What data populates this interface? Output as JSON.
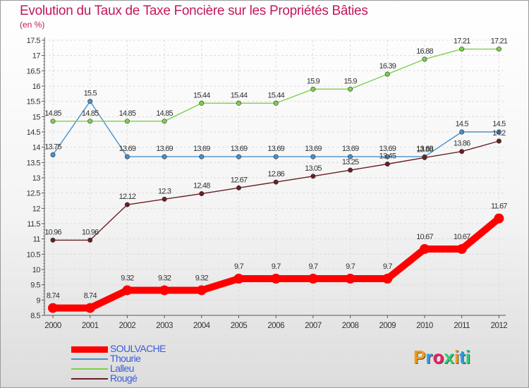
{
  "header": {
    "title": "Evolution du Taux de Taxe Foncière sur les Propriétés Bâties",
    "unit": "(en %)"
  },
  "logo": {
    "letters": [
      "P",
      "r",
      "o",
      "x",
      "i",
      "t",
      "i"
    ],
    "colors": [
      "#f39c12",
      "#3498db",
      "#e91e63",
      "#2ecc71",
      "#f39c12",
      "#3498db",
      "#2ecc71"
    ]
  },
  "chart_data": {
    "type": "line",
    "title": "Evolution du Taux de Taxe Foncière sur les Propriétés Bâties",
    "ylabel": "(en %)",
    "xlabel": "",
    "ylim": [
      8.5,
      17.5
    ],
    "ytick_step": 0.5,
    "yticks": [
      "8.5",
      "9",
      "9.5",
      "10",
      "10.5",
      "11",
      "11.5",
      "12",
      "12.5",
      "13",
      "13.5",
      "14",
      "14.5",
      "15",
      "15.5",
      "16",
      "16.5",
      "17",
      "17.5"
    ],
    "categories": [
      "2000",
      "2001",
      "2002",
      "2003",
      "2004",
      "2005",
      "2006",
      "2007",
      "2008",
      "2009",
      "2010",
      "2011",
      "2012"
    ],
    "legend_position": "bottom-left",
    "series": [
      {
        "name": "SOULVACHE",
        "color": "#ff0000",
        "emphasis": true,
        "values": [
          8.74,
          8.74,
          9.32,
          9.32,
          9.32,
          9.7,
          9.7,
          9.7,
          9.7,
          9.7,
          10.67,
          10.67,
          11.67
        ],
        "labels": [
          "8.74",
          "8.74",
          "9.32",
          "9.32",
          "9.32",
          "9.7",
          "9.7",
          "9.7",
          "9.7",
          "9.7",
          "10.67",
          "10.67",
          "11.67"
        ]
      },
      {
        "name": "Thourie",
        "color": "#4a90c8",
        "emphasis": false,
        "values": [
          13.75,
          15.5,
          13.69,
          13.69,
          13.69,
          13.69,
          13.69,
          13.69,
          13.69,
          13.69,
          13.69,
          14.5,
          14.5
        ],
        "labels": [
          "13.75",
          "15.5",
          "13.69",
          "13.69",
          "13.69",
          "13.69",
          "13.69",
          "13.69",
          "13.69",
          "13.69",
          "13.69",
          "14.5",
          "14.5"
        ]
      },
      {
        "name": "Lalleu",
        "color": "#7ed04b",
        "emphasis": false,
        "values": [
          14.85,
          14.85,
          14.85,
          14.85,
          15.44,
          15.44,
          15.44,
          15.9,
          15.9,
          16.39,
          16.88,
          17.21,
          17.21
        ],
        "labels": [
          "14.85",
          "14.85",
          "14.85",
          "14.85",
          "15.44",
          "15.44",
          "15.44",
          "15.9",
          "15.9",
          "16.39",
          "16.88",
          "17.21",
          "17.21"
        ]
      },
      {
        "name": "Rougé",
        "color": "#6b1e24",
        "emphasis": false,
        "values": [
          10.96,
          10.96,
          12.12,
          12.3,
          12.48,
          12.67,
          12.86,
          13.05,
          13.25,
          13.45,
          13.66,
          13.86,
          14.2
        ],
        "labels": [
          "10.96",
          "10.96",
          "12.12",
          "12.3",
          "12.48",
          "12.67",
          "12.86",
          "13.05",
          "13.25",
          "13.45",
          "13.66",
          "13.86",
          "14.2"
        ]
      }
    ]
  }
}
